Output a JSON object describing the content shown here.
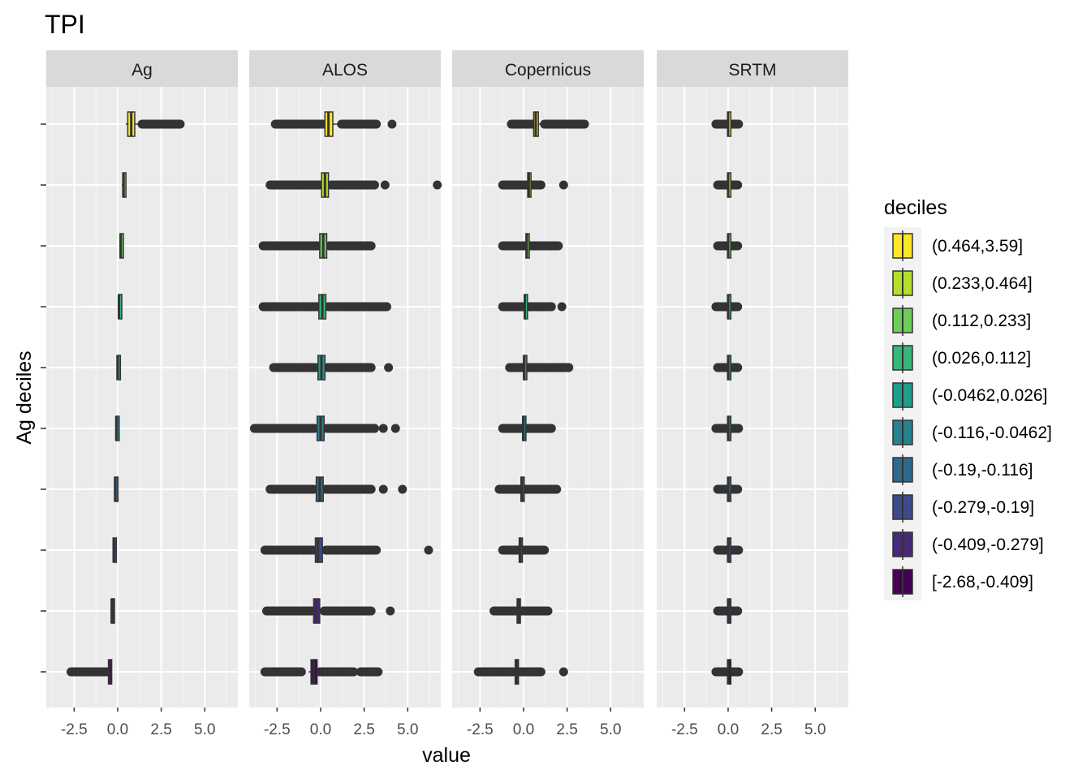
{
  "chart_data": {
    "type": "boxplot",
    "title": "TPI",
    "xlabel": "value",
    "ylabel": "Ag deciles",
    "xlim": [
      -4.1,
      6.9
    ],
    "x_ticks": [
      -2.5,
      0.0,
      2.5,
      5.0
    ],
    "x_tick_labels": [
      "-2.5",
      "0.0",
      "2.5",
      "5.0"
    ],
    "grid": true,
    "legend": {
      "title": "deciles",
      "position": "right",
      "entries": [
        {
          "label": "(0.464,3.59]",
          "color": "#FDE725"
        },
        {
          "label": "(0.233,0.464]",
          "color": "#B4DE2C"
        },
        {
          "label": "(0.112,0.233]",
          "color": "#6DCD59"
        },
        {
          "label": "(0.026,0.112]",
          "color": "#35B779"
        },
        {
          "label": "(-0.0462,0.026]",
          "color": "#1F9E89"
        },
        {
          "label": "(-0.116,-0.0462]",
          "color": "#26828E"
        },
        {
          "label": "(-0.19,-0.116]",
          "color": "#31688E"
        },
        {
          "label": "(-0.279,-0.19]",
          "color": "#3E4A89"
        },
        {
          "label": "(-0.409,-0.279]",
          "color": "#482878"
        },
        {
          "label": "[-2.68,-0.409]",
          "color": "#440154"
        }
      ]
    },
    "facets": [
      {
        "name": "Ag",
        "boxes": [
          {
            "min": -2.68,
            "q1": -0.53,
            "median": -0.48,
            "q3": -0.43,
            "max": -0.41,
            "outliers": [
              [
                -2.68,
                -0.62
              ]
            ]
          },
          {
            "min": -0.41,
            "q1": -0.37,
            "median": -0.34,
            "q3": -0.31,
            "max": -0.28,
            "outliers": []
          },
          {
            "min": -0.28,
            "q1": -0.26,
            "median": -0.23,
            "q3": -0.21,
            "max": -0.19,
            "outliers": []
          },
          {
            "min": -0.19,
            "q1": -0.17,
            "median": -0.15,
            "q3": -0.13,
            "max": -0.12,
            "outliers": []
          },
          {
            "min": -0.12,
            "q1": -0.1,
            "median": -0.08,
            "q3": -0.06,
            "max": -0.05,
            "outliers": []
          },
          {
            "min": -0.05,
            "q1": -0.03,
            "median": -0.01,
            "q3": 0.01,
            "max": 0.03,
            "outliers": []
          },
          {
            "min": 0.03,
            "q1": 0.05,
            "median": 0.07,
            "q3": 0.09,
            "max": 0.11,
            "outliers": []
          },
          {
            "min": 0.11,
            "q1": 0.14,
            "median": 0.17,
            "q3": 0.2,
            "max": 0.23,
            "outliers": []
          },
          {
            "min": 0.23,
            "q1": 0.29,
            "median": 0.34,
            "q3": 0.4,
            "max": 0.46,
            "outliers": []
          },
          {
            "min": 0.46,
            "q1": 0.58,
            "median": 0.78,
            "q3": 0.98,
            "max": 1.4,
            "outliers": [
              [
                1.4,
                3.59
              ]
            ]
          }
        ]
      },
      {
        "name": "ALOS",
        "boxes": [
          {
            "min": -0.7,
            "q1": -0.55,
            "median": -0.4,
            "q3": -0.2,
            "max": -0.05,
            "outliers": [
              [
                -3.2,
                -1.1
              ],
              [
                -0.05,
                1.9
              ],
              [
                2.3,
                3.3
              ]
            ]
          },
          {
            "min": -0.5,
            "q1": -0.4,
            "median": -0.25,
            "q3": -0.05,
            "max": 0.2,
            "outliers": [
              [
                -3.1,
                -0.5
              ],
              [
                0.2,
                2.9
              ],
              [
                4.0,
                4.0
              ]
            ]
          },
          {
            "min": -0.4,
            "q1": -0.3,
            "median": -0.15,
            "q3": 0.1,
            "max": 0.3,
            "outliers": [
              [
                -3.2,
                -0.4
              ],
              [
                0.3,
                3.2
              ],
              [
                6.2,
                6.2
              ]
            ]
          },
          {
            "min": -0.4,
            "q1": -0.25,
            "median": -0.05,
            "q3": 0.15,
            "max": 0.3,
            "outliers": [
              [
                -2.9,
                -0.4
              ],
              [
                0.3,
                2.9
              ],
              [
                3.6,
                3.6
              ],
              [
                4.7,
                4.7
              ]
            ]
          },
          {
            "min": -0.35,
            "q1": -0.2,
            "median": 0.0,
            "q3": 0.2,
            "max": 0.35,
            "outliers": [
              [
                -3.8,
                -0.35
              ],
              [
                0.35,
                3.1
              ],
              [
                3.6,
                3.6
              ],
              [
                4.3,
                4.3
              ]
            ]
          },
          {
            "min": -0.3,
            "q1": -0.15,
            "median": 0.05,
            "q3": 0.25,
            "max": 0.4,
            "outliers": [
              [
                -2.7,
                -0.3
              ],
              [
                0.4,
                2.9
              ],
              [
                3.9,
                3.9
              ]
            ]
          },
          {
            "min": -0.2,
            "q1": -0.1,
            "median": 0.1,
            "q3": 0.3,
            "max": 0.45,
            "outliers": [
              [
                -3.3,
                -0.2
              ],
              [
                0.45,
                3.8
              ]
            ]
          },
          {
            "min": -0.15,
            "q1": -0.05,
            "median": 0.15,
            "q3": 0.35,
            "max": 0.5,
            "outliers": [
              [
                -3.3,
                -0.15
              ],
              [
                0.5,
                2.9
              ]
            ]
          },
          {
            "min": 0.0,
            "q1": 0.05,
            "median": 0.25,
            "q3": 0.45,
            "max": 0.6,
            "outliers": [
              [
                -2.9,
                0.0
              ],
              [
                0.6,
                3.1
              ],
              [
                3.7,
                3.7
              ],
              [
                6.7,
                6.7
              ]
            ]
          },
          {
            "min": 0.15,
            "q1": 0.25,
            "median": 0.45,
            "q3": 0.7,
            "max": 1.2,
            "outliers": [
              [
                -2.6,
                0.15
              ],
              [
                1.2,
                3.2
              ],
              [
                4.1,
                4.1
              ]
            ]
          }
        ]
      },
      {
        "name": "Copernicus",
        "boxes": [
          {
            "min": -0.6,
            "q1": -0.48,
            "median": -0.4,
            "q3": -0.3,
            "max": -0.2,
            "outliers": [
              [
                -2.6,
                -0.6
              ],
              [
                -0.2,
                1.0
              ],
              [
                2.3,
                2.3
              ]
            ]
          },
          {
            "min": -0.45,
            "q1": -0.37,
            "median": -0.3,
            "q3": -0.22,
            "max": -0.15,
            "outliers": [
              [
                -1.7,
                -0.45
              ],
              [
                -0.15,
                1.4
              ]
            ]
          },
          {
            "min": -0.3,
            "q1": -0.25,
            "median": -0.2,
            "q3": -0.15,
            "max": -0.1,
            "outliers": [
              [
                -1.2,
                -0.3
              ],
              [
                -0.1,
                1.2
              ]
            ]
          },
          {
            "min": -0.2,
            "q1": -0.15,
            "median": -0.1,
            "q3": -0.05,
            "max": 0.0,
            "outliers": [
              [
                -1.4,
                -0.2
              ],
              [
                0.0,
                1.9
              ]
            ]
          },
          {
            "min": -0.1,
            "q1": -0.05,
            "median": -0.02,
            "q3": 0.02,
            "max": 0.06,
            "outliers": [
              [
                -1.2,
                -0.1
              ],
              [
                0.06,
                1.6
              ]
            ]
          },
          {
            "min": -0.05,
            "q1": 0.0,
            "median": 0.03,
            "q3": 0.06,
            "max": 0.1,
            "outliers": [
              [
                -0.8,
                -0.05
              ],
              [
                0.1,
                2.6
              ]
            ]
          },
          {
            "min": 0.0,
            "q1": 0.04,
            "median": 0.07,
            "q3": 0.1,
            "max": 0.14,
            "outliers": [
              [
                -1.2,
                0.0
              ],
              [
                0.14,
                1.6
              ],
              [
                2.2,
                2.2
              ]
            ]
          },
          {
            "min": 0.1,
            "q1": 0.14,
            "median": 0.18,
            "q3": 0.22,
            "max": 0.26,
            "outliers": [
              [
                -1.2,
                0.1
              ],
              [
                0.26,
                2.0
              ]
            ]
          },
          {
            "min": 0.2,
            "q1": 0.24,
            "median": 0.3,
            "q3": 0.36,
            "max": 0.42,
            "outliers": [
              [
                -1.2,
                0.2
              ],
              [
                0.42,
                1.0
              ],
              [
                2.3,
                2.3
              ]
            ]
          },
          {
            "min": 0.5,
            "q1": 0.58,
            "median": 0.7,
            "q3": 0.85,
            "max": 1.2,
            "outliers": [
              [
                -0.7,
                0.5
              ],
              [
                1.2,
                3.5
              ]
            ]
          }
        ]
      },
      {
        "name": "SRTM",
        "boxes": [
          {
            "min": -0.05,
            "q1": -0.03,
            "median": 0.0,
            "q3": 0.03,
            "max": 0.05,
            "outliers": [
              [
                -0.7,
                0.6
              ]
            ]
          },
          {
            "min": -0.05,
            "q1": -0.03,
            "median": 0.0,
            "q3": 0.03,
            "max": 0.05,
            "outliers": [
              [
                -0.6,
                0.55
              ]
            ]
          },
          {
            "min": -0.05,
            "q1": -0.03,
            "median": 0.0,
            "q3": 0.03,
            "max": 0.05,
            "outliers": [
              [
                -0.6,
                0.6
              ]
            ]
          },
          {
            "min": -0.05,
            "q1": -0.03,
            "median": 0.0,
            "q3": 0.03,
            "max": 0.05,
            "outliers": [
              [
                -0.6,
                0.55
              ]
            ]
          },
          {
            "min": -0.05,
            "q1": -0.03,
            "median": 0.0,
            "q3": 0.03,
            "max": 0.05,
            "outliers": [
              [
                -0.7,
                0.6
              ]
            ]
          },
          {
            "min": -0.05,
            "q1": -0.03,
            "median": 0.0,
            "q3": 0.03,
            "max": 0.05,
            "outliers": [
              [
                -0.6,
                0.55
              ]
            ]
          },
          {
            "min": -0.05,
            "q1": -0.03,
            "median": 0.0,
            "q3": 0.03,
            "max": 0.05,
            "outliers": [
              [
                -0.7,
                0.55
              ]
            ]
          },
          {
            "min": -0.05,
            "q1": -0.03,
            "median": 0.0,
            "q3": 0.03,
            "max": 0.05,
            "outliers": [
              [
                -0.6,
                0.55
              ]
            ]
          },
          {
            "min": -0.05,
            "q1": -0.03,
            "median": 0.0,
            "q3": 0.03,
            "max": 0.05,
            "outliers": [
              [
                -0.6,
                0.55
              ]
            ]
          },
          {
            "min": -0.05,
            "q1": -0.03,
            "median": 0.0,
            "q3": 0.03,
            "max": 0.05,
            "outliers": [
              [
                -0.7,
                0.6
              ]
            ]
          }
        ]
      }
    ]
  }
}
